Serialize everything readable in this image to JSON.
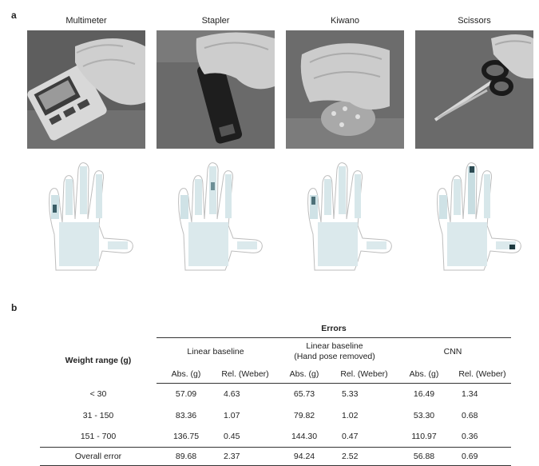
{
  "panel_a": {
    "letter": "a",
    "photos": [
      {
        "label": "Multimeter"
      },
      {
        "label": "Stapler"
      },
      {
        "label": "Kiwano"
      },
      {
        "label": "Scissors"
      }
    ]
  },
  "panel_b": {
    "letter": "b",
    "table": {
      "group_header": "Errors",
      "row_header": "Weight range  (g)",
      "methods": [
        "Linear baseline",
        "Linear baseline\n(Hand pose removed)",
        "CNN"
      ],
      "method_line1": [
        "Linear baseline",
        "Linear baseline",
        "CNN"
      ],
      "method_line2": [
        "",
        "(Hand pose removed)",
        ""
      ],
      "subheaders": [
        "Abs. (g)",
        "Rel. (Weber)",
        "Abs. (g)",
        "Rel. (Weber)",
        "Abs. (g)",
        "Rel. (Weber)"
      ],
      "rows": [
        {
          "range": "< 30",
          "values": [
            "57.09",
            "4.63",
            "65.73",
            "5.33",
            "16.49",
            "1.34"
          ]
        },
        {
          "range": "31 - 150",
          "values": [
            "83.36",
            "1.07",
            "79.82",
            "1.02",
            "53.30",
            "0.68"
          ]
        },
        {
          "range": "151 - 700",
          "values": [
            "136.75",
            "0.45",
            "144.30",
            "0.47",
            "110.97",
            "0.36"
          ]
        }
      ],
      "overall": {
        "range": "Overall error",
        "values": [
          "89.68",
          "2.37",
          "94.24",
          "2.52",
          "56.88",
          "0.69"
        ]
      }
    }
  }
}
